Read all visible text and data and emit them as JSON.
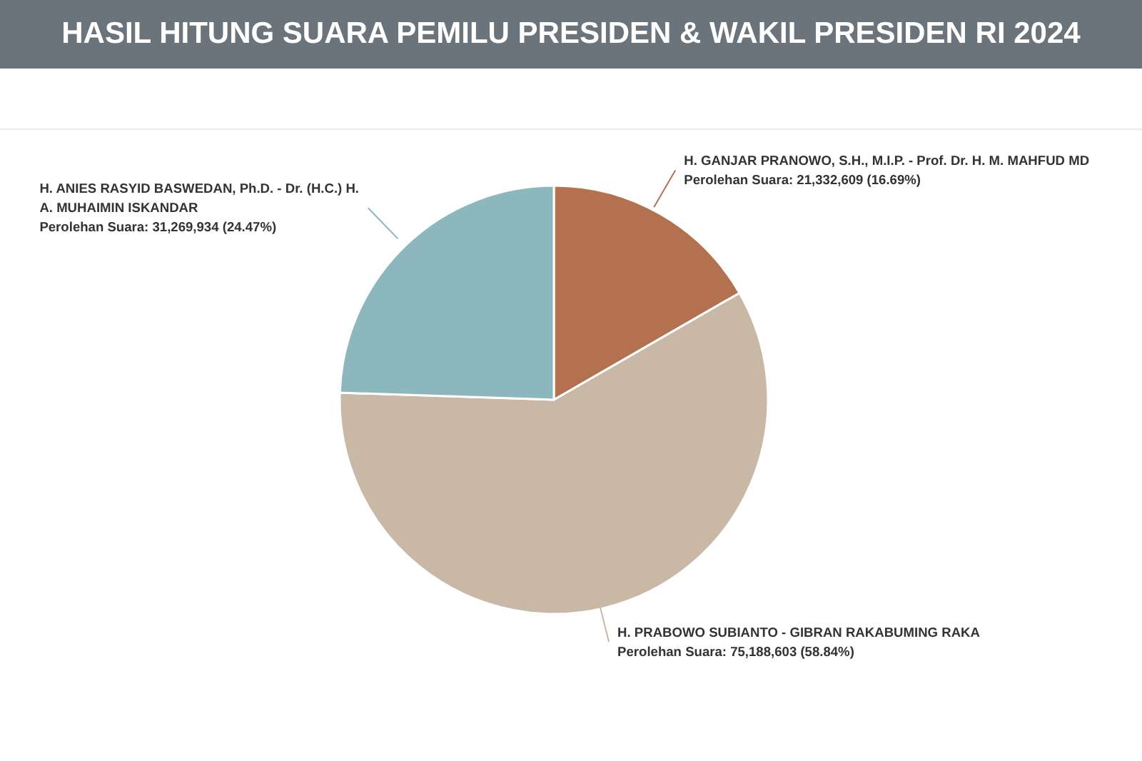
{
  "chart_data": {
    "type": "pie",
    "title": "HASIL HITUNG SUARA PEMILU PRESIDEN & WAKIL PRESIDEN RI 2024",
    "categories": [
      "H. GANJAR PRANOWO, S.H., M.I.P. - Prof. Dr. H. M. MAHFUD MD",
      "H. PRABOWO SUBIANTO - GIBRAN RAKABUMING RAKA",
      "H. ANIES RASYID BASWEDAN, Ph.D. - Dr. (H.C.) H. A. MUHAIMIN ISKANDAR"
    ],
    "values": [
      21332609,
      75188603,
      31269934
    ],
    "colors": [
      "#b47150",
      "#c8b8a5",
      "#8cb7bc"
    ],
    "value_labels": [
      "Perolehan Suara: 21,332,609 (16.69%)",
      "Perolehan Suara: 75,188,603 (58.84%)",
      "Perolehan Suara: 31,269,934 (24.47%)"
    ]
  }
}
